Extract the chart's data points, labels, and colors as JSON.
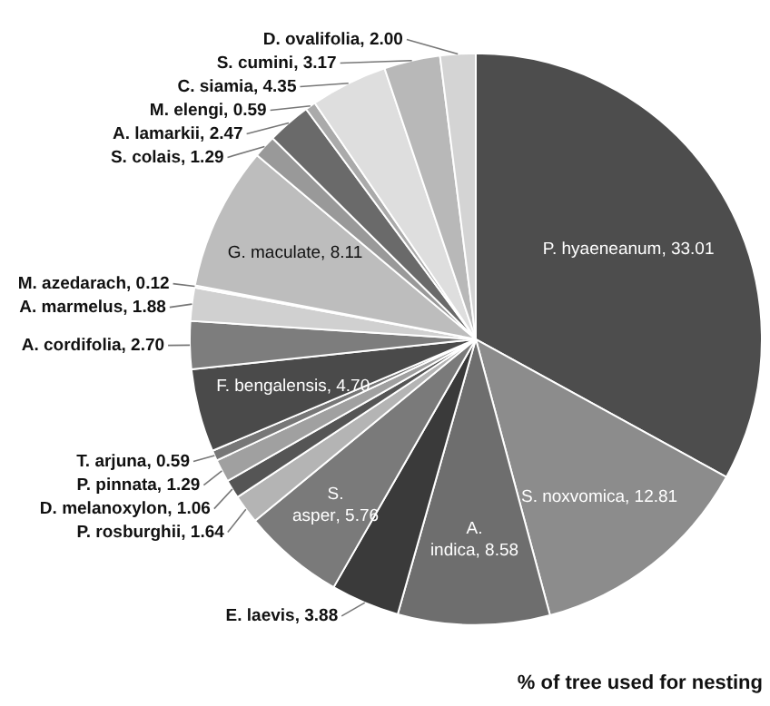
{
  "chart_data": {
    "type": "pie",
    "title": "% of tree used for nesting",
    "categories": [
      "P. hyaeneanum",
      "S. noxvomica",
      "A. indica",
      "E. laevis",
      "S. asper",
      "P. rosburghii",
      "D. melanoxylon",
      "P. pinnata",
      "T. arjuna",
      "F. bengalensis",
      "A. cordifolia",
      "A. marmelus",
      "M. azedarach",
      "G. maculate",
      "S. colais",
      "A. lamarkii",
      "M. elengi",
      "C. siamia",
      "S. cumini",
      "D. ovalifolia"
    ],
    "values": [
      33.01,
      12.81,
      8.58,
      3.88,
      5.76,
      1.64,
      1.06,
      1.29,
      0.59,
      4.7,
      2.7,
      1.88,
      0.12,
      8.11,
      1.29,
      2.47,
      0.59,
      4.35,
      3.17,
      2.0
    ],
    "colors": [
      "#4d4d4d",
      "#8c8c8c",
      "#6e6e6e",
      "#3a3a3a",
      "#7a7a7a",
      "#b4b4b4",
      "#555555",
      "#a0a0a0",
      "#777777",
      "#4a4a4a",
      "#7d7d7d",
      "#d0d0d0",
      "#f0f0f0",
      "#bdbdbd",
      "#999999",
      "#6a6a6a",
      "#aaaaaa",
      "#dedede",
      "#b8b8b8",
      "#d4d4d4"
    ],
    "value_labels": [
      ", 33.01",
      ", 12.81",
      ", 8.58",
      ", 3.88",
      ", 5.76",
      ", 1.64",
      ", 1.06",
      ", 1.29",
      ", 0.59",
      ", 4.70",
      ", 2.70",
      ", 1.88",
      ", 0.12",
      ", 8.11",
      ", 1.29",
      ", 2.47",
      ", 0.59",
      ", 4.35",
      ", 3.17",
      ", 2.00"
    ],
    "legend": false
  }
}
